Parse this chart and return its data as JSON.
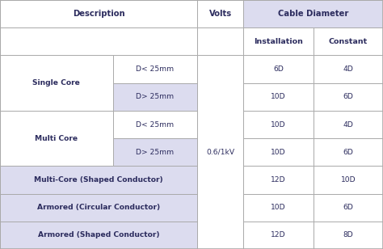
{
  "rows": [
    {
      "label1": "Single Core",
      "label2": "D< 25mm",
      "install": "6D",
      "constant": "4D",
      "shade": false,
      "wide": false
    },
    {
      "label1": "",
      "label2": "D> 25mm",
      "install": "10D",
      "constant": "6D",
      "shade": true,
      "wide": false
    },
    {
      "label1": "Multi Core",
      "label2": "D< 25mm",
      "install": "10D",
      "constant": "4D",
      "shade": false,
      "wide": false
    },
    {
      "label1": "",
      "label2": "D> 25mm",
      "install": "10D",
      "constant": "6D",
      "shade": true,
      "wide": false
    },
    {
      "label1": "Multi-Core (Shaped Conductor)",
      "label2": "",
      "install": "12D",
      "constant": "10D",
      "shade": true,
      "wide": true
    },
    {
      "label1": "Armored (Circular Conductor)",
      "label2": "",
      "install": "10D",
      "constant": "6D",
      "shade": true,
      "wide": true
    },
    {
      "label1": "Armored (Shaped Conductor)",
      "label2": "",
      "install": "12D",
      "constant": "8D",
      "shade": true,
      "wide": true
    }
  ],
  "shade_color": "#dcdcef",
  "border_color": "#aaaaaa",
  "text_color": "#2c2c5e",
  "white": "#ffffff",
  "figsize": [
    4.74,
    3.08
  ],
  "dpi": 100,
  "c0": 0.0,
  "c1": 0.295,
  "c2": 0.515,
  "c3": 0.635,
  "c4": 0.818,
  "c5": 1.0,
  "n_header": 2,
  "n_data": 7
}
